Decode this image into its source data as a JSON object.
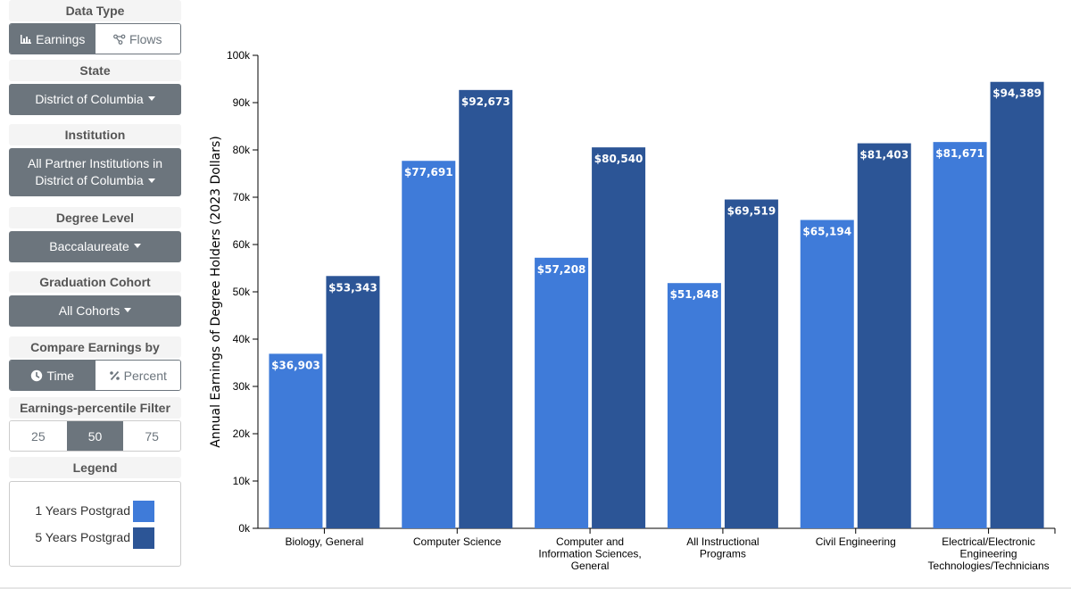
{
  "sidebar": {
    "data_type": {
      "header": "Data Type",
      "earnings": "Earnings",
      "flows": "Flows"
    },
    "state": {
      "header": "State",
      "value": "District of Columbia"
    },
    "institution": {
      "header": "Institution",
      "line1": "All Partner Institutions in",
      "line2": "District of Columbia"
    },
    "degree_level": {
      "header": "Degree Level",
      "value": "Baccalaureate"
    },
    "cohort": {
      "header": "Graduation Cohort",
      "value": "All Cohorts"
    },
    "compare": {
      "header": "Compare Earnings by",
      "time": "Time",
      "percent": "Percent"
    },
    "percentile": {
      "header": "Earnings-percentile Filter",
      "options": [
        "25",
        "50",
        "75"
      ],
      "selected": "50"
    },
    "legend": {
      "header": "Legend",
      "items": [
        "1 Years Postgrad",
        "5 Years Postgrad"
      ]
    }
  },
  "colors": {
    "series1": "#3f7bd9",
    "series2": "#2c5596",
    "control": "#6c757d"
  },
  "chart_data": {
    "type": "bar",
    "ylabel": "Annual Earnings of Degree Holders (2023 Dollars)",
    "ylim": [
      0,
      100000
    ],
    "yticks": [
      "0k",
      "10k",
      "20k",
      "30k",
      "40k",
      "50k",
      "60k",
      "70k",
      "80k",
      "90k",
      "100k"
    ],
    "categories": [
      [
        "Biology, General"
      ],
      [
        "Computer Science"
      ],
      [
        "Computer and",
        "Information Sciences,",
        "General"
      ],
      [
        "All Instructional",
        "Programs"
      ],
      [
        "Civil Engineering"
      ],
      [
        "Electrical/Electronic",
        "Engineering",
        "Technologies/Technicians"
      ]
    ],
    "series": [
      {
        "name": "1 Years Postgrad",
        "values": [
          36903,
          77691,
          57208,
          51848,
          65194,
          81671
        ],
        "labels": [
          "$36,903",
          "$77,691",
          "$57,208",
          "$51,848",
          "$65,194",
          "$81,671"
        ]
      },
      {
        "name": "5 Years Postgrad",
        "values": [
          53343,
          92673,
          80540,
          69519,
          81403,
          94389
        ],
        "labels": [
          "$53,343",
          "$92,673",
          "$80,540",
          "$69,519",
          "$81,403",
          "$94,389"
        ]
      }
    ],
    "grid": false,
    "legend": "left-sidebar"
  }
}
